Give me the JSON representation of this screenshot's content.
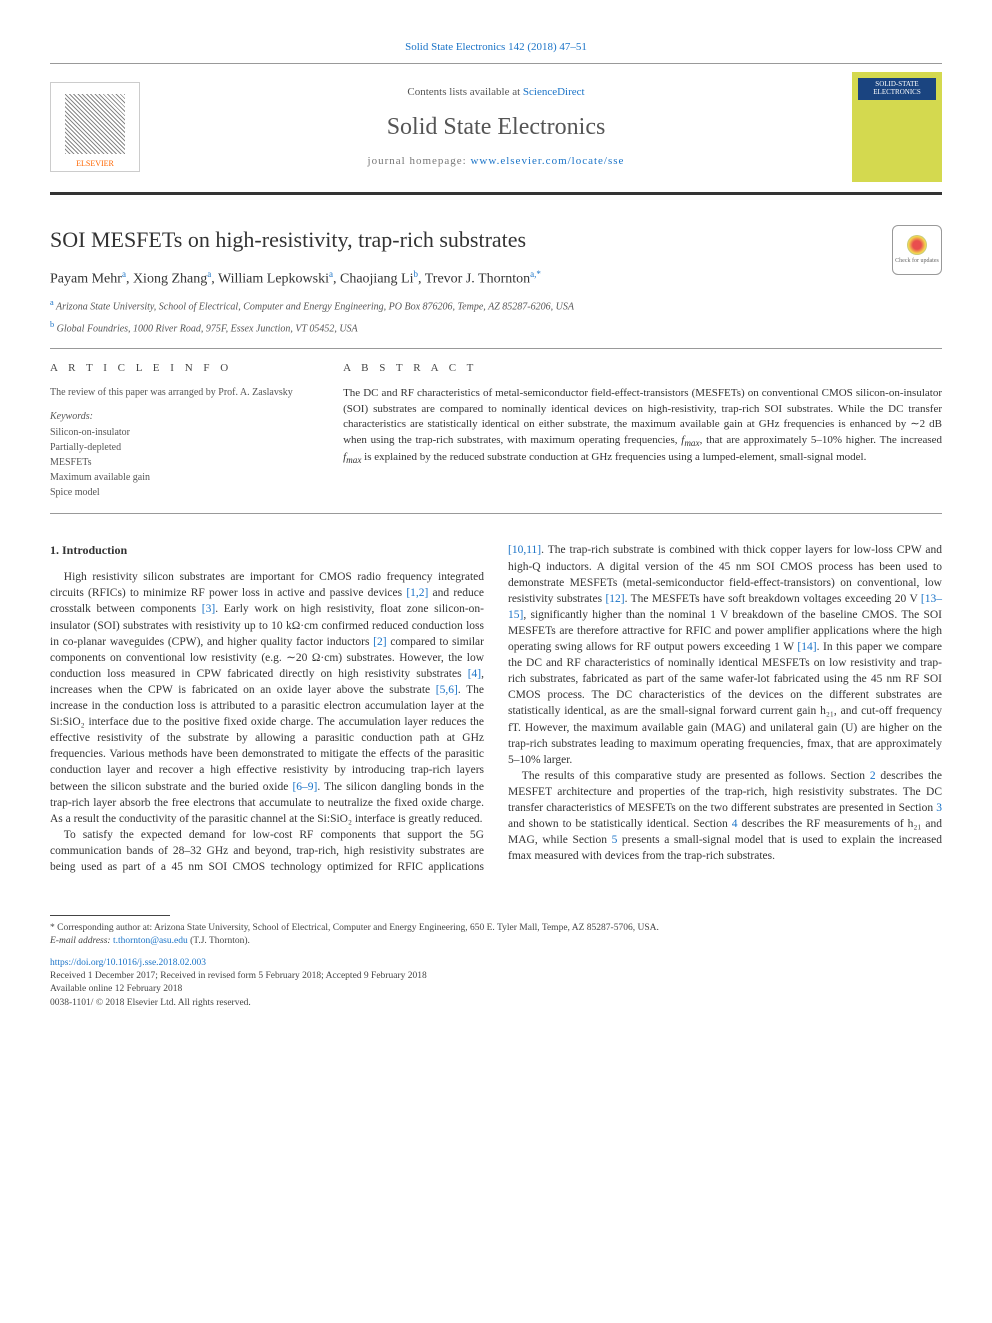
{
  "colors": {
    "link": "#1a73c7",
    "text": "#333333",
    "muted": "#555555",
    "rule": "#999999",
    "journal_cover_bg": "#d4d94f",
    "journal_cover_title_bg": "#1a4480",
    "journal_cover_title_fg": "#ffffff",
    "elsevier_orange": "#ff6600"
  },
  "top_link": "Solid State Electronics 142 (2018) 47–51",
  "header": {
    "contents_prefix": "Contents lists available at ",
    "contents_link": "ScienceDirect",
    "journal_title": "Solid State Electronics",
    "homepage_prefix": "journal homepage: ",
    "homepage_url": "www.elsevier.com/locate/sse",
    "elsevier_label": "ELSEVIER",
    "cover_title": "SOLID-STATE ELECTRONICS"
  },
  "check_updates_label": "Check for updates",
  "article": {
    "title": "SOI MESFETs on high-resistivity, trap-rich substrates",
    "authors_html": "Payam Mehr<sup>a</sup>, Xiong Zhang<sup>a</sup>, William Lepkowski<sup>a</sup>, Chaojiang Li<sup>b</sup>, Trevor J. Thornton<sup>a,*</sup>",
    "affiliations": [
      {
        "sup": "a",
        "text": "Arizona State University, School of Electrical, Computer and Energy Engineering, PO Box 876206, Tempe, AZ 85287-6206, USA"
      },
      {
        "sup": "b",
        "text": "Global Foundries, 1000 River Road, 975F, Essex Junction, VT 05452, USA"
      }
    ]
  },
  "article_info": {
    "heading": "A R T I C L E  I N F O",
    "review_note": "The review of this paper was arranged by Prof. A. Zaslavsky",
    "keywords_heading": "Keywords:",
    "keywords": [
      "Silicon-on-insulator",
      "Partially-depleted",
      "MESFETs",
      "Maximum available gain",
      "Spice model"
    ]
  },
  "abstract": {
    "heading": "A B S T R A C T",
    "text": "The DC and RF characteristics of metal-semiconductor field-effect-transistors (MESFETs) on conventional CMOS silicon-on-insulator (SOI) substrates are compared to nominally identical devices on high-resistivity, trap-rich SOI substrates. While the DC transfer characteristics are statistically identical on either substrate, the maximum available gain at GHz frequencies is enhanced by ∼2 dB when using the trap-rich substrates, with maximum operating frequencies, fmax, that are approximately 5–10% higher. The increased fmax is explained by the reduced substrate conduction at GHz frequencies using a lumped-element, small-signal model."
  },
  "body": {
    "section_number_title": "1. Introduction",
    "para1_before_ref12": "High resistivity silicon substrates are important for CMOS radio frequency integrated circuits (RFICs) to minimize RF power loss in active and passive devices ",
    "ref12": "[1,2]",
    "para1_after_ref12_before_ref3": " and reduce crosstalk between components ",
    "ref3": "[3]",
    "para1_after_ref3": ". Early work on high resistivity, float zone silicon-on-insulator (SOI) substrates with resistivity up to 10 kΩ·cm confirmed reduced conduction loss in co-planar waveguides (CPW), and higher quality factor inductors ",
    "ref2": "[2]",
    "para1_after_ref2": " compared to similar components on conventional low resistivity (e.g. ∼20 Ω·cm) substrates. However, the low conduction loss measured in CPW fabricated directly on high resistivity substrates ",
    "ref4": "[4]",
    "para1_after_ref4": ", increases when the CPW is fabricated on an oxide layer above the substrate ",
    "ref56": "[5,6]",
    "para1_after_ref56": ". The increase in the conduction loss is attributed to a parasitic electron accumulation layer at the Si:SiO₂ interface due to the positive fixed oxide charge. The accumulation layer reduces the effective resistivity of the substrate by allowing a parasitic conduction path at GHz frequencies. Various methods have been demonstrated to mitigate the effects of the parasitic conduction layer and recover a high effective resistivity by introducing trap-rich layers between the silicon substrate and the buried oxide ",
    "ref69": "[6–9]",
    "para1_after_ref69": ". The silicon dangling bonds in the trap-rich layer absorb the free electrons that accumulate to neutralize the fixed oxide charge. As a result the conductivity of the parasitic channel at the Si:SiO₂ interface is greatly reduced.",
    "para2_before_ref1011": "To satisfy the expected demand for low-cost RF components that support the 5G communication bands of 28–32 GHz and beyond, trap-rich, high resistivity substrates are being used as part of a 45 nm SOI CMOS technology optimized for RFIC applications ",
    "ref1011": "[10,11]",
    "para2_after_ref1011": ". The trap-rich substrate is combined with thick copper layers for low-loss CPW and high-Q inductors. A digital version of the 45 nm SOI CMOS process has been used to demonstrate MESFETs (metal-semiconductor field-effect-transistors) on conventional, low resistivity substrates ",
    "ref12b": "[12]",
    "para2_after_ref12": ". The MESFETs have soft breakdown voltages exceeding 20 V ",
    "ref1315": "[13–15]",
    "para2_after_ref1315": ", significantly higher than the nominal 1 V breakdown of the baseline CMOS. The SOI MESFETs are therefore attractive for RFIC and power amplifier applications where the high operating swing allows for RF output powers exceeding 1 W ",
    "ref14": "[14]",
    "para2_after_ref14": ". In this paper we compare the DC and RF characteristics of nominally identical MESFETs on low resistivity and trap-rich substrates, fabricated as part of the same wafer-lot fabricated using the 45 nm RF SOI CMOS process. The DC characteristics of the devices on the different substrates are statistically identical, as are the small-signal forward current gain h₂₁, and cut-off frequency fT. However, the maximum available gain (MAG) and unilateral gain (U) are higher on the trap-rich substrates leading to maximum operating frequencies, fmax, that are approximately 5–10% larger.",
    "para3_before_sec2": "The results of this comparative study are presented as follows. Section ",
    "sec2": "2",
    "para3_after_sec2": " describes the MESFET architecture and properties of the trap-rich, high resistivity substrates. The DC transfer characteristics of MESFETs on the two different substrates are presented in Section ",
    "sec3": "3",
    "para3_after_sec3": " and shown to be statistically identical. Section ",
    "sec4": "4",
    "para3_after_sec4": " describes the RF measurements of h₂₁ and MAG, while Section ",
    "sec5": "5",
    "para3_after_sec5": " presents a small-signal model that is used to explain the increased fmax measured with devices from the trap-rich substrates."
  },
  "footnote": {
    "corresponding": "* Corresponding author at: Arizona State University, School of Electrical, Computer and Energy Engineering, 650 E. Tyler Mall, Tempe, AZ 85287-5706, USA.",
    "email_label": "E-mail address: ",
    "email": "t.thornton@asu.edu",
    "email_suffix": " (T.J. Thornton)."
  },
  "doi_block": {
    "doi_url": "https://doi.org/10.1016/j.sse.2018.02.003",
    "received": "Received 1 December 2017; Received in revised form 5 February 2018; Accepted 9 February 2018",
    "available": "Available online 12 February 2018",
    "copyright": "0038-1101/ © 2018 Elsevier Ltd. All rights reserved."
  }
}
